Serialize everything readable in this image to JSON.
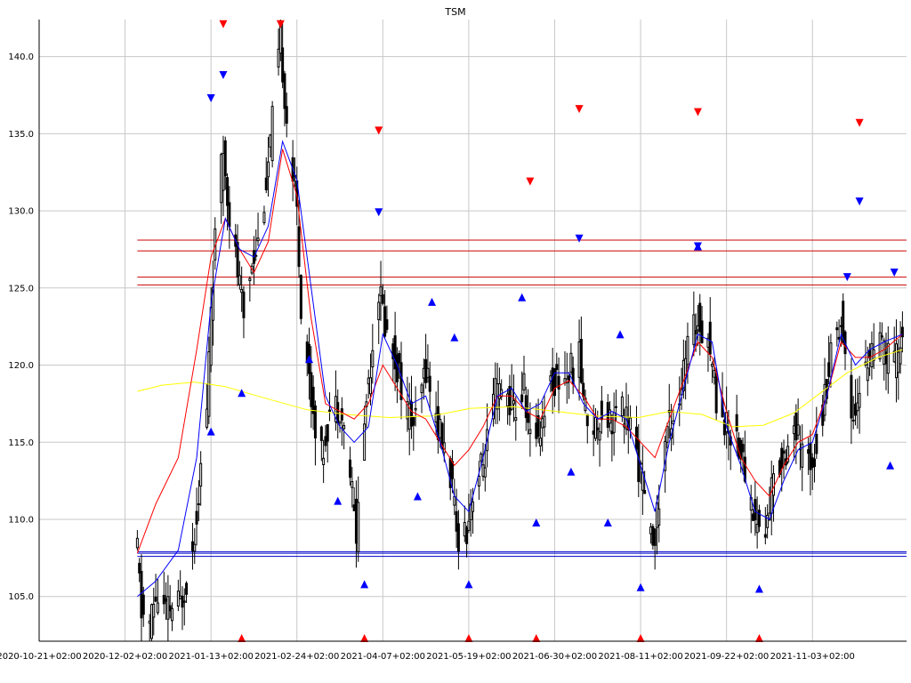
{
  "chart_data": {
    "type": "candlestick",
    "title": "TSM",
    "xlabel": "",
    "ylabel": "",
    "grid": true,
    "legend": "none",
    "x_ticks": [
      "2020-10-21+02:00",
      "2020-12-02+02:00",
      "2021-01-13+02:00",
      "2021-02-24+02:00",
      "2021-04-07+02:00",
      "2021-05-19+02:00",
      "2021-06-30+02:00",
      "2021-08-11+02:00",
      "2021-09-22+02:00",
      "2021-11-03+02:00"
    ],
    "x_range": [
      "2020-10-21",
      "2021-12-19"
    ],
    "y_ticks": [
      {
        "value": 105,
        "label": "105.0"
      },
      {
        "value": 110,
        "label": "110.0"
      },
      {
        "value": 115,
        "label": "115.0"
      },
      {
        "value": 120,
        "label": "120.0"
      },
      {
        "value": 125,
        "label": "125.0"
      },
      {
        "value": 130,
        "label": "130.0"
      },
      {
        "value": 135,
        "label": "135.0"
      },
      {
        "value": 140,
        "label": "140.0"
      }
    ],
    "ylim": [
      102.1,
      142.4
    ],
    "colors": {
      "candle": "#000000",
      "ma_fast": "#ff0000",
      "ma_slow": "#0000ff",
      "ma_long": "#ffff00",
      "resistance": "#cc0000",
      "support": "#0000cc",
      "grid": "#c8c8c8",
      "sell_marker": "#ff0000",
      "buy_marker": "#0000ff",
      "low_marker": "#ff0000"
    },
    "price_path": [
      [
        "2020-12-08",
        107.8
      ],
      [
        "2020-12-10",
        104.0
      ],
      [
        "2020-12-14",
        103.2
      ],
      [
        "2020-12-17",
        105.0
      ],
      [
        "2020-12-22",
        104.0
      ],
      [
        "2020-12-29",
        104.5
      ],
      [
        "2021-01-04",
        108.0
      ],
      [
        "2021-01-07",
        112.0
      ],
      [
        "2021-01-11",
        117.0
      ],
      [
        "2021-01-13",
        124.0
      ],
      [
        "2021-01-15",
        128.0
      ],
      [
        "2021-01-19",
        134.0
      ],
      [
        "2021-01-22",
        130.0
      ],
      [
        "2021-01-26",
        126.0
      ],
      [
        "2021-01-29",
        123.0
      ],
      [
        "2021-02-02",
        127.0
      ],
      [
        "2021-02-05",
        128.0
      ],
      [
        "2021-02-10",
        133.0
      ],
      [
        "2021-02-16",
        141.0
      ],
      [
        "2021-02-19",
        136.0
      ],
      [
        "2021-02-24",
        130.0
      ],
      [
        "2021-02-26",
        124.0
      ],
      [
        "2021-03-03",
        118.0
      ],
      [
        "2021-03-08",
        114.0
      ],
      [
        "2021-03-12",
        117.0
      ],
      [
        "2021-03-17",
        117.5
      ],
      [
        "2021-03-22",
        113.0
      ],
      [
        "2021-03-25",
        109.0
      ],
      [
        "2021-03-30",
        118.0
      ],
      [
        "2021-04-05",
        125.0
      ],
      [
        "2021-04-09",
        122.0
      ],
      [
        "2021-04-14",
        120.0
      ],
      [
        "2021-04-19",
        117.0
      ],
      [
        "2021-04-23",
        116.0
      ],
      [
        "2021-04-28",
        120.0
      ],
      [
        "2021-05-04",
        116.0
      ],
      [
        "2021-05-10",
        113.0
      ],
      [
        "2021-05-13",
        109.0
      ],
      [
        "2021-05-18",
        109.5
      ],
      [
        "2021-05-21",
        112.0
      ],
      [
        "2021-05-26",
        113.5
      ],
      [
        "2021-06-01",
        118.0
      ],
      [
        "2021-06-07",
        118.0
      ],
      [
        "2021-06-11",
        117.0
      ],
      [
        "2021-06-15",
        118.5
      ],
      [
        "2021-06-18",
        115.0
      ],
      [
        "2021-06-23",
        116.0
      ],
      [
        "2021-06-28",
        119.0
      ],
      [
        "2021-07-02",
        119.0
      ],
      [
        "2021-07-07",
        119.5
      ],
      [
        "2021-07-12",
        120.5
      ],
      [
        "2021-07-15",
        117.0
      ],
      [
        "2021-07-20",
        116.0
      ],
      [
        "2021-07-23",
        117.0
      ],
      [
        "2021-07-28",
        116.5
      ],
      [
        "2021-08-02",
        117.0
      ],
      [
        "2021-08-06",
        116.0
      ],
      [
        "2021-08-11",
        113.0
      ],
      [
        "2021-08-16",
        108.5
      ],
      [
        "2021-08-19",
        110.0
      ],
      [
        "2021-08-24",
        116.0
      ],
      [
        "2021-08-30",
        118.0
      ],
      [
        "2021-09-03",
        121.0
      ],
      [
        "2021-09-08",
        123.0
      ],
      [
        "2021-09-13",
        122.0
      ],
      [
        "2021-09-17",
        118.0
      ],
      [
        "2021-09-22",
        116.0
      ],
      [
        "2021-09-27",
        115.5
      ],
      [
        "2021-10-01",
        113.0
      ],
      [
        "2021-10-06",
        110.0
      ],
      [
        "2021-10-11",
        109.0
      ],
      [
        "2021-10-14",
        112.0
      ],
      [
        "2021-10-19",
        114.0
      ],
      [
        "2021-10-25",
        116.0
      ],
      [
        "2021-10-29",
        114.0
      ],
      [
        "2021-11-03",
        114.0
      ],
      [
        "2021-11-08",
        117.0
      ],
      [
        "2021-11-12",
        121.0
      ],
      [
        "2021-11-17",
        123.0
      ],
      [
        "2021-11-22",
        117.0
      ],
      [
        "2021-11-26",
        118.0
      ],
      [
        "2021-12-01",
        121.0
      ],
      [
        "2021-12-07",
        121.0
      ],
      [
        "2021-12-13",
        120.0
      ],
      [
        "2021-12-17",
        122.0
      ]
    ],
    "ma_fast": [
      [
        "2020-12-08",
        107.8
      ],
      [
        "2020-12-17",
        111.0
      ],
      [
        "2020-12-28",
        114.0
      ],
      [
        "2021-01-06",
        121.0
      ],
      [
        "2021-01-13",
        127.0
      ],
      [
        "2021-01-20",
        129.5
      ],
      [
        "2021-01-27",
        127.5
      ],
      [
        "2021-02-03",
        126.0
      ],
      [
        "2021-02-10",
        128.0
      ],
      [
        "2021-02-17",
        134.0
      ],
      [
        "2021-02-24",
        131.0
      ],
      [
        "2021-03-03",
        123.0
      ],
      [
        "2021-03-10",
        117.5
      ],
      [
        "2021-03-17",
        117.0
      ],
      [
        "2021-03-24",
        116.5
      ],
      [
        "2021-03-31",
        117.5
      ],
      [
        "2021-04-07",
        120.0
      ],
      [
        "2021-04-14",
        118.5
      ],
      [
        "2021-04-21",
        117.0
      ],
      [
        "2021-04-28",
        116.5
      ],
      [
        "2021-05-05",
        115.0
      ],
      [
        "2021-05-12",
        113.5
      ],
      [
        "2021-05-19",
        114.5
      ],
      [
        "2021-05-26",
        116.0
      ],
      [
        "2021-06-02",
        118.0
      ],
      [
        "2021-06-09",
        118.0
      ],
      [
        "2021-06-16",
        117.0
      ],
      [
        "2021-06-23",
        116.5
      ],
      [
        "2021-06-30",
        118.5
      ],
      [
        "2021-07-07",
        119.0
      ],
      [
        "2021-07-14",
        118.0
      ],
      [
        "2021-07-21",
        116.5
      ],
      [
        "2021-07-28",
        116.5
      ],
      [
        "2021-08-04",
        116.0
      ],
      [
        "2021-08-11",
        115.0
      ],
      [
        "2021-08-18",
        114.0
      ],
      [
        "2021-08-25",
        116.5
      ],
      [
        "2021-09-01",
        119.0
      ],
      [
        "2021-09-08",
        121.5
      ],
      [
        "2021-09-15",
        120.5
      ],
      [
        "2021-09-22",
        117.0
      ],
      [
        "2021-09-29",
        114.0
      ],
      [
        "2021-10-06",
        112.5
      ],
      [
        "2021-10-13",
        111.5
      ],
      [
        "2021-10-20",
        113.5
      ],
      [
        "2021-10-27",
        115.0
      ],
      [
        "2021-11-03",
        115.5
      ],
      [
        "2021-11-10",
        118.0
      ],
      [
        "2021-11-17",
        121.5
      ],
      [
        "2021-11-24",
        120.5
      ],
      [
        "2021-12-01",
        120.5
      ],
      [
        "2021-12-08",
        121.0
      ],
      [
        "2021-12-17",
        122.0
      ]
    ],
    "ma_slow": [
      [
        "2020-12-08",
        105.0
      ],
      [
        "2020-12-17",
        106.0
      ],
      [
        "2020-12-28",
        108.0
      ],
      [
        "2021-01-06",
        114.0
      ],
      [
        "2021-01-13",
        124.0
      ],
      [
        "2021-01-20",
        129.5
      ],
      [
        "2021-01-27",
        127.5
      ],
      [
        "2021-02-03",
        127.0
      ],
      [
        "2021-02-10",
        129.0
      ],
      [
        "2021-02-17",
        134.5
      ],
      [
        "2021-02-24",
        132.0
      ],
      [
        "2021-03-03",
        125.0
      ],
      [
        "2021-03-10",
        118.0
      ],
      [
        "2021-03-17",
        116.0
      ],
      [
        "2021-03-24",
        115.0
      ],
      [
        "2021-03-31",
        116.0
      ],
      [
        "2021-04-07",
        122.0
      ],
      [
        "2021-04-14",
        120.0
      ],
      [
        "2021-04-21",
        117.5
      ],
      [
        "2021-04-28",
        118.0
      ],
      [
        "2021-05-05",
        115.0
      ],
      [
        "2021-05-12",
        111.5
      ],
      [
        "2021-05-19",
        110.5
      ],
      [
        "2021-05-26",
        114.0
      ],
      [
        "2021-06-02",
        118.0
      ],
      [
        "2021-06-09",
        118.5
      ],
      [
        "2021-06-16",
        117.0
      ],
      [
        "2021-06-23",
        117.5
      ],
      [
        "2021-06-30",
        119.5
      ],
      [
        "2021-07-07",
        119.5
      ],
      [
        "2021-07-14",
        117.5
      ],
      [
        "2021-07-21",
        116.5
      ],
      [
        "2021-07-28",
        117.0
      ],
      [
        "2021-08-04",
        116.5
      ],
      [
        "2021-08-11",
        113.5
      ],
      [
        "2021-08-18",
        110.5
      ],
      [
        "2021-08-25",
        115.0
      ],
      [
        "2021-09-01",
        118.5
      ],
      [
        "2021-09-08",
        122.0
      ],
      [
        "2021-09-15",
        121.5
      ],
      [
        "2021-09-22",
        116.0
      ],
      [
        "2021-09-29",
        113.5
      ],
      [
        "2021-10-06",
        110.5
      ],
      [
        "2021-10-13",
        110.0
      ],
      [
        "2021-10-20",
        112.5
      ],
      [
        "2021-10-27",
        114.5
      ],
      [
        "2021-11-03",
        115.0
      ],
      [
        "2021-11-10",
        118.0
      ],
      [
        "2021-11-17",
        122.0
      ],
      [
        "2021-11-24",
        120.0
      ],
      [
        "2021-12-01",
        121.0
      ],
      [
        "2021-12-08",
        121.5
      ],
      [
        "2021-12-17",
        122.0
      ]
    ],
    "ma_long": [
      [
        "2020-12-08",
        118.3
      ],
      [
        "2020-12-20",
        118.7
      ],
      [
        "2021-01-05",
        118.9
      ],
      [
        "2021-01-20",
        118.6
      ],
      [
        "2021-02-10",
        117.8
      ],
      [
        "2021-03-01",
        117.1
      ],
      [
        "2021-03-20",
        116.8
      ],
      [
        "2021-04-10",
        116.6
      ],
      [
        "2021-05-01",
        116.7
      ],
      [
        "2021-05-20",
        117.2
      ],
      [
        "2021-06-10",
        117.3
      ],
      [
        "2021-07-01",
        117.0
      ],
      [
        "2021-07-20",
        116.7
      ],
      [
        "2021-08-10",
        116.6
      ],
      [
        "2021-08-25",
        117.0
      ],
      [
        "2021-09-10",
        116.8
      ],
      [
        "2021-09-25",
        116.0
      ],
      [
        "2021-10-10",
        116.1
      ],
      [
        "2021-10-25",
        116.9
      ],
      [
        "2021-11-05",
        118.0
      ],
      [
        "2021-11-20",
        119.5
      ],
      [
        "2021-12-05",
        120.5
      ],
      [
        "2021-12-17",
        121.0
      ]
    ],
    "resistance_levels": [
      125.2,
      125.7,
      127.4,
      128.1
    ],
    "support_levels": [
      107.6,
      107.8,
      107.9
    ],
    "sell_markers": [
      [
        "2021-01-19",
        142.1
      ],
      [
        "2021-02-16",
        142.1
      ],
      [
        "2021-04-05",
        135.2
      ],
      [
        "2021-06-18",
        131.9
      ],
      [
        "2021-07-12",
        136.6
      ],
      [
        "2021-09-08",
        136.4
      ],
      [
        "2021-11-26",
        135.7
      ]
    ],
    "buy_markers_down": [
      [
        "2021-01-13",
        137.3
      ],
      [
        "2021-01-19",
        138.8
      ],
      [
        "2021-04-05",
        129.9
      ],
      [
        "2021-07-12",
        128.2
      ],
      [
        "2021-09-08",
        127.7
      ],
      [
        "2021-11-20",
        125.7
      ],
      [
        "2021-11-26",
        130.6
      ],
      [
        "2021-12-13",
        126.0
      ]
    ],
    "buy_markers_up": [
      [
        "2021-01-13",
        115.7
      ],
      [
        "2021-01-28",
        118.2
      ],
      [
        "2021-03-02",
        120.4
      ],
      [
        "2021-03-16",
        111.2
      ],
      [
        "2021-03-29",
        105.8
      ],
      [
        "2021-04-24",
        111.5
      ],
      [
        "2021-05-01",
        124.1
      ],
      [
        "2021-05-12",
        121.8
      ],
      [
        "2021-05-19",
        105.8
      ],
      [
        "2021-06-14",
        124.4
      ],
      [
        "2021-06-21",
        109.8
      ],
      [
        "2021-07-08",
        113.1
      ],
      [
        "2021-07-26",
        109.8
      ],
      [
        "2021-08-01",
        122.0
      ],
      [
        "2021-08-11",
        105.6
      ],
      [
        "2021-09-08",
        127.7
      ],
      [
        "2021-10-08",
        105.5
      ],
      [
        "2021-12-11",
        113.5
      ]
    ],
    "low_markers": [
      [
        "2021-01-28",
        102.3
      ],
      [
        "2021-03-29",
        102.3
      ],
      [
        "2021-05-19",
        102.3
      ],
      [
        "2021-06-21",
        102.3
      ],
      [
        "2021-08-11",
        102.3
      ],
      [
        "2021-10-08",
        102.3
      ]
    ]
  }
}
